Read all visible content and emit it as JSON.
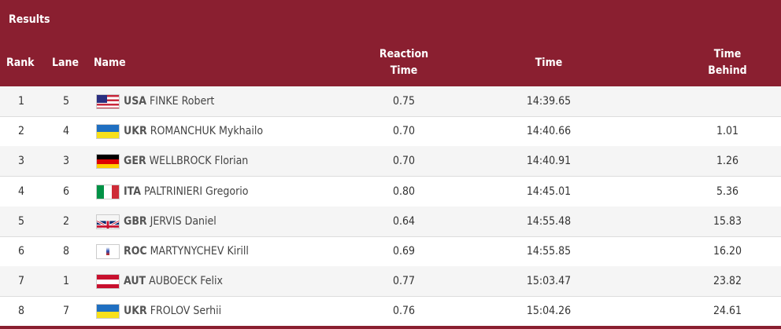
{
  "title": "Results",
  "headers": {
    "rank": "Rank",
    "lane": "Lane",
    "name": "Name",
    "reaction_1": "Reaction",
    "reaction_2": "Time",
    "time": "Time",
    "behind_1": "Time",
    "behind_2": "Behind"
  },
  "colors": {
    "header": "#8a1f30"
  },
  "rows": [
    {
      "rank": "1",
      "lane": "5",
      "noc": "USA",
      "name": "FINKE Robert",
      "reaction": "0.75",
      "time": "14:39.65",
      "behind": "",
      "flag": "usa"
    },
    {
      "rank": "2",
      "lane": "4",
      "noc": "UKR",
      "name": "ROMANCHUK Mykhailo",
      "reaction": "0.70",
      "time": "14:40.66",
      "behind": "1.01",
      "flag": "ukr"
    },
    {
      "rank": "3",
      "lane": "3",
      "noc": "GER",
      "name": "WELLBROCK Florian",
      "reaction": "0.70",
      "time": "14:40.91",
      "behind": "1.26",
      "flag": "ger"
    },
    {
      "rank": "4",
      "lane": "6",
      "noc": "ITA",
      "name": "PALTRINIERI Gregorio",
      "reaction": "0.80",
      "time": "14:45.01",
      "behind": "5.36",
      "flag": "ita"
    },
    {
      "rank": "5",
      "lane": "2",
      "noc": "GBR",
      "name": "JERVIS Daniel",
      "reaction": "0.64",
      "time": "14:55.48",
      "behind": "15.83",
      "flag": "gbr"
    },
    {
      "rank": "6",
      "lane": "8",
      "noc": "ROC",
      "name": "MARTYNYCHEV Kirill",
      "reaction": "0.69",
      "time": "14:55.85",
      "behind": "16.20",
      "flag": "roc"
    },
    {
      "rank": "7",
      "lane": "1",
      "noc": "AUT",
      "name": "AUBOECK Felix",
      "reaction": "0.77",
      "time": "15:03.47",
      "behind": "23.82",
      "flag": "aut"
    },
    {
      "rank": "8",
      "lane": "7",
      "noc": "UKR",
      "name": "FROLOV Serhii",
      "reaction": "0.76",
      "time": "15:04.26",
      "behind": "24.61",
      "flag": "ukr"
    }
  ]
}
